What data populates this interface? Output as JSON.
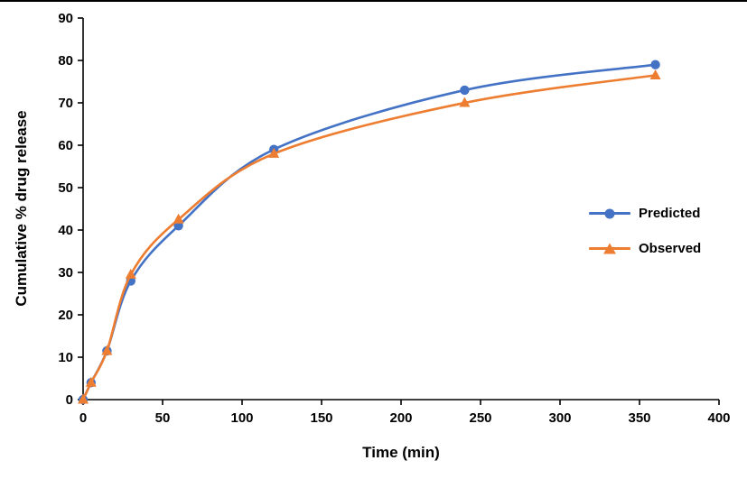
{
  "chart_data": {
    "type": "line",
    "title": "",
    "xlabel": "Time (min)",
    "ylabel": "Cumulative % drug release",
    "x": [
      0,
      5,
      15,
      30,
      60,
      120,
      240,
      360
    ],
    "series": [
      {
        "name": "Predicted",
        "color": "#4472C4",
        "marker": "circle",
        "values": [
          0,
          4,
          11.5,
          28,
          41,
          59,
          73,
          79
        ]
      },
      {
        "name": "Observed",
        "color": "#ED7D31",
        "marker": "triangle",
        "values": [
          0,
          4,
          11.5,
          29.5,
          42.5,
          58,
          70,
          76.5
        ]
      }
    ],
    "xlim": [
      0,
      400
    ],
    "ylim": [
      0,
      90
    ],
    "x_ticks": [
      0,
      50,
      100,
      150,
      200,
      250,
      300,
      350,
      400
    ],
    "y_ticks": [
      0,
      10,
      20,
      30,
      40,
      50,
      60,
      70,
      80,
      90
    ],
    "grid": false,
    "legend_position": "right-inside",
    "axis_color": "#000000",
    "line_style": "smooth"
  }
}
